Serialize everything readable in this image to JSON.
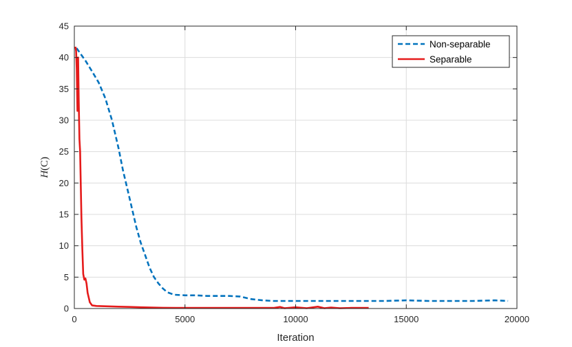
{
  "chart_data": {
    "type": "line",
    "title": "",
    "xlabel": "Iteration",
    "ylabel_italic": "H",
    "ylabel_rest": "(C)",
    "xlim": [
      0,
      20000
    ],
    "ylim": [
      0,
      45
    ],
    "xticks": [
      0,
      5000,
      10000,
      15000,
      20000
    ],
    "yticks": [
      0,
      5,
      10,
      15,
      20,
      25,
      30,
      35,
      40,
      45
    ],
    "grid": true,
    "legend_position": "top-right",
    "series": [
      {
        "name": "Non-separable",
        "color": "#0072bd",
        "style": "dashed",
        "x": [
          100,
          300,
          500,
          800,
          1100,
          1400,
          1700,
          2000,
          2200,
          2400,
          2600,
          2800,
          3000,
          3200,
          3400,
          3600,
          3800,
          4000,
          4200,
          4500,
          5000,
          5500,
          6000,
          6500,
          7000,
          7500,
          8000,
          8500,
          9000,
          10000,
          11000,
          12000,
          13000,
          14000,
          15000,
          16000,
          17000,
          18000,
          19000,
          19600
        ],
        "y": [
          41.5,
          40.5,
          39.5,
          37.8,
          36.0,
          33.5,
          30.0,
          25.5,
          22.0,
          19.0,
          16.0,
          13.0,
          10.5,
          8.5,
          6.5,
          5.0,
          4.0,
          3.2,
          2.6,
          2.2,
          2.1,
          2.1,
          2.0,
          2.0,
          2.0,
          1.9,
          1.5,
          1.3,
          1.2,
          1.2,
          1.2,
          1.2,
          1.2,
          1.2,
          1.3,
          1.2,
          1.2,
          1.2,
          1.3,
          1.2
        ]
      },
      {
        "name": "Separable",
        "color": "#e51a1a",
        "style": "solid",
        "x": [
          50,
          80,
          110,
          140,
          170,
          200,
          230,
          260,
          290,
          320,
          360,
          400,
          450,
          500,
          550,
          600,
          700,
          800,
          1000,
          1500,
          2000,
          2500,
          3000,
          4000,
          5000,
          6000,
          7000,
          8000,
          9000,
          9300,
          9500,
          10000,
          10500,
          11000,
          11300,
          11600,
          12000,
          12500,
          13000,
          13300
        ],
        "y": [
          41.7,
          41.0,
          38.0,
          31.5,
          40.0,
          33.0,
          27.0,
          25.0,
          20.0,
          14.5,
          9.5,
          5.5,
          4.6,
          4.8,
          4.0,
          2.5,
          1.0,
          0.5,
          0.4,
          0.35,
          0.3,
          0.25,
          0.2,
          0.12,
          0.1,
          0.1,
          0.1,
          0.1,
          0.1,
          0.25,
          0.05,
          0.2,
          0.05,
          0.3,
          0.05,
          0.15,
          0.05,
          0.1,
          0.1,
          0.1
        ]
      }
    ]
  }
}
